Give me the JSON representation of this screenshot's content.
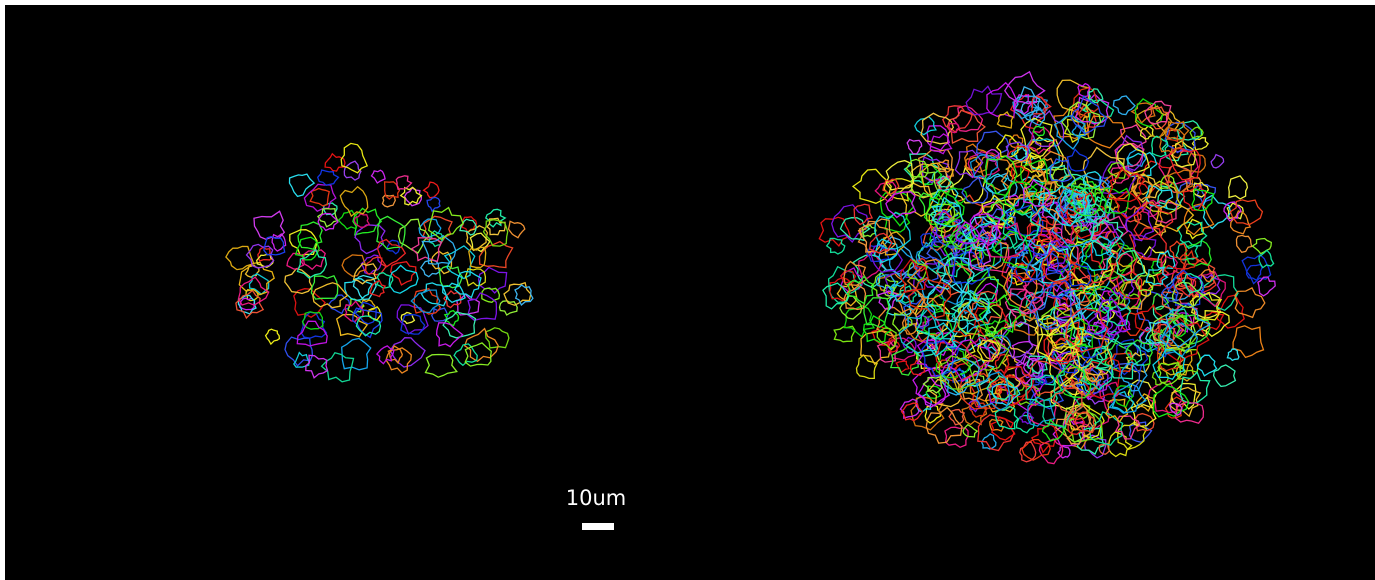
{
  "scale_bar": {
    "label": "10um"
  }
}
